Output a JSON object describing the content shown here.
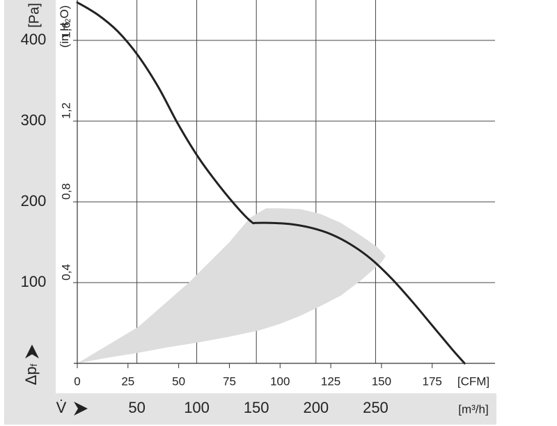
{
  "chart_data": {
    "type": "line",
    "left_axis": {
      "unit": "[Pa]",
      "ticks": [
        100,
        200,
        300,
        400
      ],
      "range": [
        0,
        450
      ],
      "symbol": "Δp",
      "symbol_sub": "f"
    },
    "inner_axis": {
      "unit_prefix": "(in H",
      "unit_sub": "2",
      "unit_suffix": "O)",
      "ticks": [
        "0,4",
        "0,8",
        "1,2",
        "1,6"
      ],
      "tick_values_pa": [
        100,
        200,
        300,
        400
      ]
    },
    "x_axis_cfm": {
      "unit": "[CFM]",
      "ticks": [
        0,
        25,
        50,
        75,
        100,
        125,
        150,
        175
      ],
      "range": [
        0,
        206
      ]
    },
    "x_axis_m3h": {
      "unit": "[m³/h]",
      "symbol": "V̇",
      "ticks": [
        50,
        100,
        150,
        200,
        250
      ],
      "tick_values_cfm": [
        29.4,
        58.9,
        88.3,
        117.7,
        147.1
      ]
    },
    "grid": true,
    "series": [
      {
        "color": "#222222",
        "x": [
          0,
          10,
          20,
          30,
          40,
          50,
          60,
          70,
          80,
          86,
          88,
          95,
          105,
          115,
          125,
          135,
          145,
          155,
          165,
          175,
          185,
          191
        ],
        "y": [
          447,
          432,
          411,
          381,
          342,
          295,
          254,
          220,
          190,
          175,
          174,
          174,
          172.5,
          168,
          160,
          147,
          129,
          105,
          77,
          47,
          17,
          0
        ]
      }
    ],
    "operating_band": {
      "color": "#dddddd",
      "upper": {
        "x": [
          0,
          30,
          55,
          75,
          85,
          93,
          100,
          110,
          120,
          130,
          140,
          148,
          152
        ],
        "y": [
          0,
          45,
          100,
          150,
          180,
          192,
          192,
          191,
          185,
          174,
          158,
          144,
          133
        ]
      },
      "lower": {
        "x": [
          150,
          140,
          130,
          120,
          110,
          100,
          90,
          75,
          60,
          45,
          30,
          15,
          0
        ],
        "y": [
          125,
          103,
          84,
          71,
          59,
          49,
          41,
          33,
          26,
          20,
          13,
          7,
          0
        ]
      }
    }
  }
}
